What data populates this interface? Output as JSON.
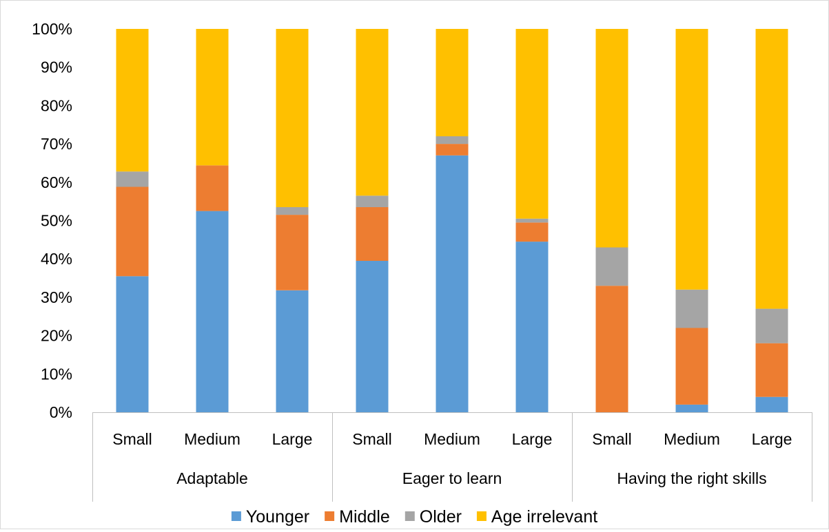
{
  "chart_data": {
    "type": "bar",
    "stacked": true,
    "normalized": true,
    "groups": [
      {
        "label": "Adaptable",
        "categories": [
          "Small",
          "Medium",
          "Large"
        ]
      },
      {
        "label": "Eager to learn",
        "categories": [
          "Small",
          "Medium",
          "Large"
        ]
      },
      {
        "label": "Having the right skills",
        "categories": [
          "Small",
          "Medium",
          "Large"
        ]
      }
    ],
    "series": [
      {
        "name": "Younger",
        "color": "#5b9bd5",
        "values": [
          35.5,
          52.5,
          31.8,
          39.5,
          67.0,
          44.5,
          0,
          2.0,
          4.0
        ]
      },
      {
        "name": "Middle",
        "color": "#ed7d31",
        "values": [
          23.3,
          11.9,
          19.7,
          14.0,
          3.0,
          5.0,
          33.0,
          20.0,
          14.0
        ]
      },
      {
        "name": "Older",
        "color": "#a5a5a5",
        "values": [
          4.0,
          0,
          2.0,
          3.0,
          2.0,
          1.0,
          10.0,
          10.0,
          9.0
        ]
      },
      {
        "name": "Age irrelevant",
        "color": "#ffc000",
        "values": [
          37.2,
          35.6,
          46.5,
          43.5,
          28.0,
          49.5,
          57.0,
          68.0,
          73.0
        ]
      }
    ],
    "ylim": [
      0,
      100
    ],
    "yticks": [
      "0%",
      "10%",
      "20%",
      "30%",
      "40%",
      "50%",
      "60%",
      "70%",
      "80%",
      "90%",
      "100%"
    ],
    "xlabel": "",
    "ylabel": "",
    "title": "",
    "grid": false,
    "legend_position": "bottom"
  }
}
